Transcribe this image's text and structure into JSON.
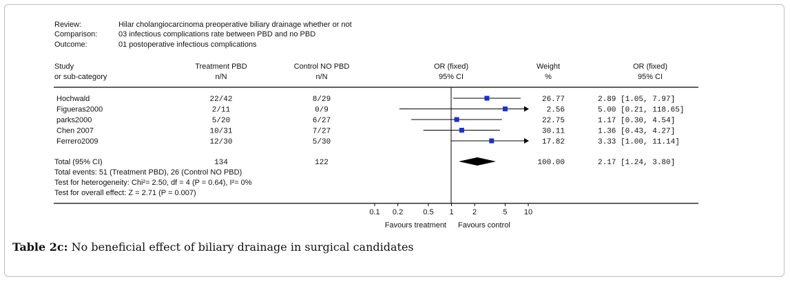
{
  "meta": {
    "review_label": "Review:",
    "review_value": "Hilar cholangiocarcinoma preoperative biliary drainage whether or not",
    "comparison_label": "Comparison:",
    "comparison_value": "03 infectious complications rate between PBD and no PBD",
    "outcome_label": "Outcome:",
    "outcome_value": "01 postoperative infectious complications"
  },
  "headers": {
    "study": "Study",
    "study_sub": "or sub-category",
    "treatment": "Treatment PBD",
    "treatment_sub": "n/N",
    "control": "Control NO PBD",
    "control_sub": "n/N",
    "or_plot": "OR (fixed)",
    "or_plot_sub": "95% CI",
    "weight": "Weight",
    "weight_sub": "%",
    "or_text": "OR (fixed)",
    "or_text_sub": "95% CI"
  },
  "chart_data": {
    "type": "forest",
    "scale": "log",
    "xlim": [
      0.1,
      10
    ],
    "ticks": [
      {
        "value": 0.1,
        "label": "0.1"
      },
      {
        "value": 0.2,
        "label": "0.2"
      },
      {
        "value": 0.5,
        "label": "0.5"
      },
      {
        "value": 1,
        "label": "1"
      },
      {
        "value": 2,
        "label": "2"
      },
      {
        "value": 5,
        "label": "5"
      },
      {
        "value": 10,
        "label": "10"
      }
    ],
    "studies": [
      {
        "name": "Hochwald",
        "treatment": "22/42",
        "control": "8/29",
        "weight": "26.77",
        "or_text": "2.89 [1.05, 7.97]",
        "or": 2.89,
        "lo": 1.05,
        "hi": 7.97
      },
      {
        "name": "Figueras2000",
        "treatment": "2/11",
        "control": "0/9",
        "weight": "2.56",
        "or_text": "5.00 [0.21, 118.65]",
        "or": 5.0,
        "lo": 0.21,
        "hi": 118.65
      },
      {
        "name": "parks2000",
        "treatment": "5/20",
        "control": "6/27",
        "weight": "22.75",
        "or_text": "1.17 [0.30, 4.54]",
        "or": 1.17,
        "lo": 0.3,
        "hi": 4.54
      },
      {
        "name": "Chen 2007",
        "treatment": "10/31",
        "control": "7/27",
        "weight": "30.11",
        "or_text": "1.36 [0.43, 4.27]",
        "or": 1.36,
        "lo": 0.43,
        "hi": 4.27
      },
      {
        "name": "Ferrero2009",
        "treatment": "12/30",
        "control": "5/30",
        "weight": "17.82",
        "or_text": "3.33 [1.00, 11.14]",
        "or": 3.33,
        "lo": 1.0,
        "hi": 11.14
      }
    ],
    "total": {
      "name": "Total (95% CI)",
      "treatment": "134",
      "control": "122",
      "weight": "100.00",
      "or_text": "2.17 [1.24, 3.80]",
      "or": 2.17,
      "lo": 1.24,
      "hi": 3.8
    },
    "notes": [
      "Total events: 51 (Treatment PBD), 26 (Control NO PBD)",
      "Test for heterogeneity: Chi²= 2.50, df = 4 (P = 0.64), I²= 0%",
      "Test for overall effect: Z = 2.71 (P = 0.007)"
    ],
    "favours_left": "Favours treatment",
    "favours_right": "Favours control"
  },
  "caption": {
    "label": "Table 2c:",
    "text": " No beneficial effect of biliary drainage in surgical candidates"
  },
  "colors": {
    "marker": "#1c2fd0",
    "line": "#000000"
  }
}
